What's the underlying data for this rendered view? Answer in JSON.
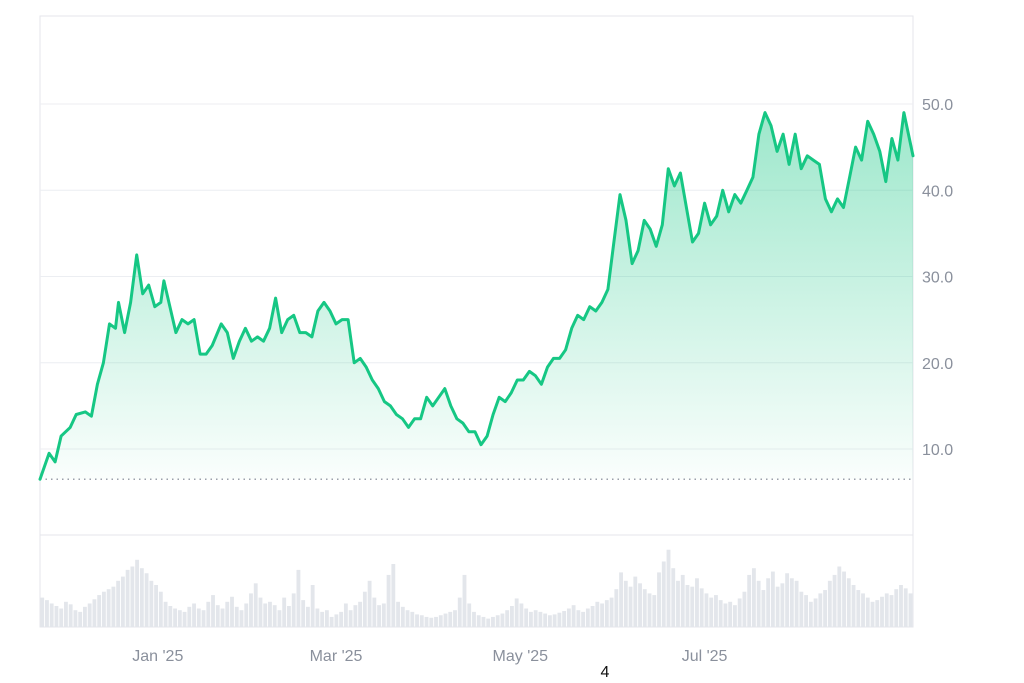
{
  "page_number": "4",
  "colors": {
    "line": "#16c784",
    "fill_top": "#16c784",
    "grid": "#eceef2",
    "border": "#e4e6eb",
    "baseline": "#9aa0aa",
    "volume": "#e3e6eb",
    "tick_text": "#8a909c"
  },
  "chart_data": {
    "type": "area",
    "title": "",
    "xlabel": "",
    "ylabel": "",
    "x_ticks": [
      "Jan '25",
      "Mar '25",
      "May '25",
      "Jul '25"
    ],
    "y_ticks": [
      "10.0",
      "20.0",
      "30.0",
      "40.0",
      "50.0"
    ],
    "y_tick_values": [
      10,
      20,
      30,
      40,
      50
    ],
    "ylim": [
      -10,
      60
    ],
    "baseline_value": 6.5,
    "grid": true,
    "x_range": [
      "2024-11-23",
      "2025-09-08"
    ],
    "series": [
      {
        "values": [
          [
            "2024-11-23",
            6.5
          ],
          [
            "2024-11-26",
            9.5
          ],
          [
            "2024-11-28",
            8.5
          ],
          [
            "2024-11-30",
            11.5
          ],
          [
            "2024-12-03",
            12.5
          ],
          [
            "2024-12-05",
            14.0
          ],
          [
            "2024-12-08",
            14.3
          ],
          [
            "2024-12-10",
            13.8
          ],
          [
            "2024-12-12",
            17.5
          ],
          [
            "2024-12-14",
            20.0
          ],
          [
            "2024-12-16",
            24.5
          ],
          [
            "2024-12-18",
            24.0
          ],
          [
            "2024-12-19",
            27.0
          ],
          [
            "2024-12-21",
            23.5
          ],
          [
            "2024-12-23",
            27.0
          ],
          [
            "2024-12-25",
            32.5
          ],
          [
            "2024-12-27",
            28.0
          ],
          [
            "2024-12-29",
            29.0
          ],
          [
            "2024-12-31",
            26.5
          ],
          [
            "2025-01-02",
            27.0
          ],
          [
            "2025-01-03",
            29.5
          ],
          [
            "2025-01-05",
            26.5
          ],
          [
            "2025-01-07",
            23.5
          ],
          [
            "2025-01-09",
            25.0
          ],
          [
            "2025-01-11",
            24.5
          ],
          [
            "2025-01-13",
            25.0
          ],
          [
            "2025-01-15",
            21.0
          ],
          [
            "2025-01-17",
            21.0
          ],
          [
            "2025-01-19",
            22.0
          ],
          [
            "2025-01-22",
            24.5
          ],
          [
            "2025-01-24",
            23.5
          ],
          [
            "2025-01-26",
            20.5
          ],
          [
            "2025-01-28",
            22.5
          ],
          [
            "2025-01-30",
            24.0
          ],
          [
            "2025-02-01",
            22.5
          ],
          [
            "2025-02-03",
            23.0
          ],
          [
            "2025-02-05",
            22.5
          ],
          [
            "2025-02-07",
            24.0
          ],
          [
            "2025-02-09",
            27.5
          ],
          [
            "2025-02-11",
            23.5
          ],
          [
            "2025-02-13",
            25.0
          ],
          [
            "2025-02-15",
            25.5
          ],
          [
            "2025-02-17",
            23.5
          ],
          [
            "2025-02-19",
            23.5
          ],
          [
            "2025-02-21",
            23.0
          ],
          [
            "2025-02-23",
            26.0
          ],
          [
            "2025-02-25",
            27.0
          ],
          [
            "2025-02-27",
            26.0
          ],
          [
            "2025-03-01",
            24.5
          ],
          [
            "2025-03-03",
            25.0
          ],
          [
            "2025-03-05",
            25.0
          ],
          [
            "2025-03-07",
            20.0
          ],
          [
            "2025-03-09",
            20.5
          ],
          [
            "2025-03-11",
            19.5
          ],
          [
            "2025-03-13",
            18.0
          ],
          [
            "2025-03-15",
            17.0
          ],
          [
            "2025-03-17",
            15.5
          ],
          [
            "2025-03-19",
            15.0
          ],
          [
            "2025-03-21",
            14.0
          ],
          [
            "2025-03-23",
            13.5
          ],
          [
            "2025-03-25",
            12.5
          ],
          [
            "2025-03-27",
            13.5
          ],
          [
            "2025-03-29",
            13.5
          ],
          [
            "2025-03-31",
            16.0
          ],
          [
            "2025-04-02",
            15.0
          ],
          [
            "2025-04-04",
            16.0
          ],
          [
            "2025-04-06",
            17.0
          ],
          [
            "2025-04-08",
            15.0
          ],
          [
            "2025-04-10",
            13.5
          ],
          [
            "2025-04-12",
            13.0
          ],
          [
            "2025-04-14",
            12.0
          ],
          [
            "2025-04-16",
            12.0
          ],
          [
            "2025-04-18",
            10.5
          ],
          [
            "2025-04-20",
            11.5
          ],
          [
            "2025-04-22",
            14.0
          ],
          [
            "2025-04-24",
            16.0
          ],
          [
            "2025-04-26",
            15.5
          ],
          [
            "2025-04-28",
            16.5
          ],
          [
            "2025-04-30",
            18.0
          ],
          [
            "2025-05-02",
            18.0
          ],
          [
            "2025-05-04",
            19.0
          ],
          [
            "2025-05-06",
            18.5
          ],
          [
            "2025-05-08",
            17.5
          ],
          [
            "2025-05-10",
            19.5
          ],
          [
            "2025-05-12",
            20.5
          ],
          [
            "2025-05-14",
            20.5
          ],
          [
            "2025-05-16",
            21.5
          ],
          [
            "2025-05-18",
            24.0
          ],
          [
            "2025-05-20",
            25.5
          ],
          [
            "2025-05-22",
            25.0
          ],
          [
            "2025-05-24",
            26.5
          ],
          [
            "2025-05-26",
            26.0
          ],
          [
            "2025-05-28",
            27.0
          ],
          [
            "2025-05-30",
            28.5
          ],
          [
            "2025-06-01",
            34.0
          ],
          [
            "2025-06-03",
            39.5
          ],
          [
            "2025-06-05",
            36.5
          ],
          [
            "2025-06-07",
            31.5
          ],
          [
            "2025-06-09",
            33.0
          ],
          [
            "2025-06-11",
            36.5
          ],
          [
            "2025-06-13",
            35.5
          ],
          [
            "2025-06-15",
            33.5
          ],
          [
            "2025-06-17",
            36.0
          ],
          [
            "2025-06-19",
            42.5
          ],
          [
            "2025-06-21",
            40.5
          ],
          [
            "2025-06-23",
            42.0
          ],
          [
            "2025-06-25",
            38.0
          ],
          [
            "2025-06-27",
            34.0
          ],
          [
            "2025-06-29",
            35.0
          ],
          [
            "2025-07-01",
            38.5
          ],
          [
            "2025-07-03",
            36.0
          ],
          [
            "2025-07-05",
            37.0
          ],
          [
            "2025-07-07",
            40.0
          ],
          [
            "2025-07-09",
            37.5
          ],
          [
            "2025-07-11",
            39.5
          ],
          [
            "2025-07-13",
            38.5
          ],
          [
            "2025-07-15",
            40.0
          ],
          [
            "2025-07-17",
            41.5
          ],
          [
            "2025-07-19",
            46.5
          ],
          [
            "2025-07-21",
            49.0
          ],
          [
            "2025-07-23",
            47.5
          ],
          [
            "2025-07-25",
            44.5
          ],
          [
            "2025-07-27",
            46.5
          ],
          [
            "2025-07-29",
            43.0
          ],
          [
            "2025-07-31",
            46.5
          ],
          [
            "2025-08-02",
            42.5
          ],
          [
            "2025-08-04",
            44.0
          ],
          [
            "2025-08-06",
            43.5
          ],
          [
            "2025-08-08",
            43.0
          ],
          [
            "2025-08-10",
            39.0
          ],
          [
            "2025-08-12",
            37.5
          ],
          [
            "2025-08-14",
            39.0
          ],
          [
            "2025-08-16",
            38.0
          ],
          [
            "2025-08-18",
            41.5
          ],
          [
            "2025-08-20",
            45.0
          ],
          [
            "2025-08-22",
            43.5
          ],
          [
            "2025-08-24",
            48.0
          ],
          [
            "2025-08-26",
            46.5
          ],
          [
            "2025-08-28",
            44.5
          ],
          [
            "2025-08-30",
            41.0
          ],
          [
            "2025-09-01",
            46.0
          ],
          [
            "2025-09-03",
            43.5
          ],
          [
            "2025-09-05",
            49.0
          ],
          [
            "2025-09-08",
            44.0
          ]
        ]
      }
    ],
    "volume": [
      0.35,
      0.32,
      0.28,
      0.25,
      0.22,
      0.3,
      0.27,
      0.2,
      0.18,
      0.24,
      0.28,
      0.33,
      0.38,
      0.42,
      0.45,
      0.48,
      0.55,
      0.6,
      0.68,
      0.72,
      0.8,
      0.7,
      0.64,
      0.55,
      0.5,
      0.42,
      0.3,
      0.25,
      0.22,
      0.2,
      0.18,
      0.24,
      0.28,
      0.22,
      0.2,
      0.3,
      0.38,
      0.26,
      0.22,
      0.3,
      0.36,
      0.24,
      0.2,
      0.28,
      0.4,
      0.52,
      0.35,
      0.28,
      0.3,
      0.26,
      0.2,
      0.35,
      0.25,
      0.4,
      0.68,
      0.32,
      0.24,
      0.5,
      0.22,
      0.18,
      0.2,
      0.12,
      0.15,
      0.18,
      0.28,
      0.2,
      0.26,
      0.3,
      0.42,
      0.55,
      0.35,
      0.26,
      0.28,
      0.62,
      0.75,
      0.3,
      0.24,
      0.2,
      0.18,
      0.15,
      0.14,
      0.12,
      0.11,
      0.12,
      0.14,
      0.16,
      0.18,
      0.2,
      0.35,
      0.62,
      0.28,
      0.18,
      0.14,
      0.12,
      0.1,
      0.12,
      0.14,
      0.16,
      0.2,
      0.25,
      0.34,
      0.28,
      0.22,
      0.18,
      0.2,
      0.18,
      0.16,
      0.14,
      0.15,
      0.17,
      0.19,
      0.22,
      0.26,
      0.2,
      0.18,
      0.22,
      0.25,
      0.3,
      0.28,
      0.32,
      0.35,
      0.45,
      0.65,
      0.55,
      0.48,
      0.6,
      0.52,
      0.45,
      0.4,
      0.38,
      0.65,
      0.78,
      0.92,
      0.7,
      0.55,
      0.62,
      0.5,
      0.48,
      0.58,
      0.46,
      0.4,
      0.35,
      0.38,
      0.32,
      0.28,
      0.3,
      0.26,
      0.34,
      0.42,
      0.62,
      0.7,
      0.55,
      0.44,
      0.58,
      0.66,
      0.48,
      0.52,
      0.64,
      0.58,
      0.55,
      0.42,
      0.38,
      0.3,
      0.34,
      0.4,
      0.44,
      0.55,
      0.62,
      0.72,
      0.66,
      0.58,
      0.5,
      0.44,
      0.4,
      0.35,
      0.3,
      0.32,
      0.36,
      0.4,
      0.38,
      0.45,
      0.5,
      0.46,
      0.4
    ]
  }
}
